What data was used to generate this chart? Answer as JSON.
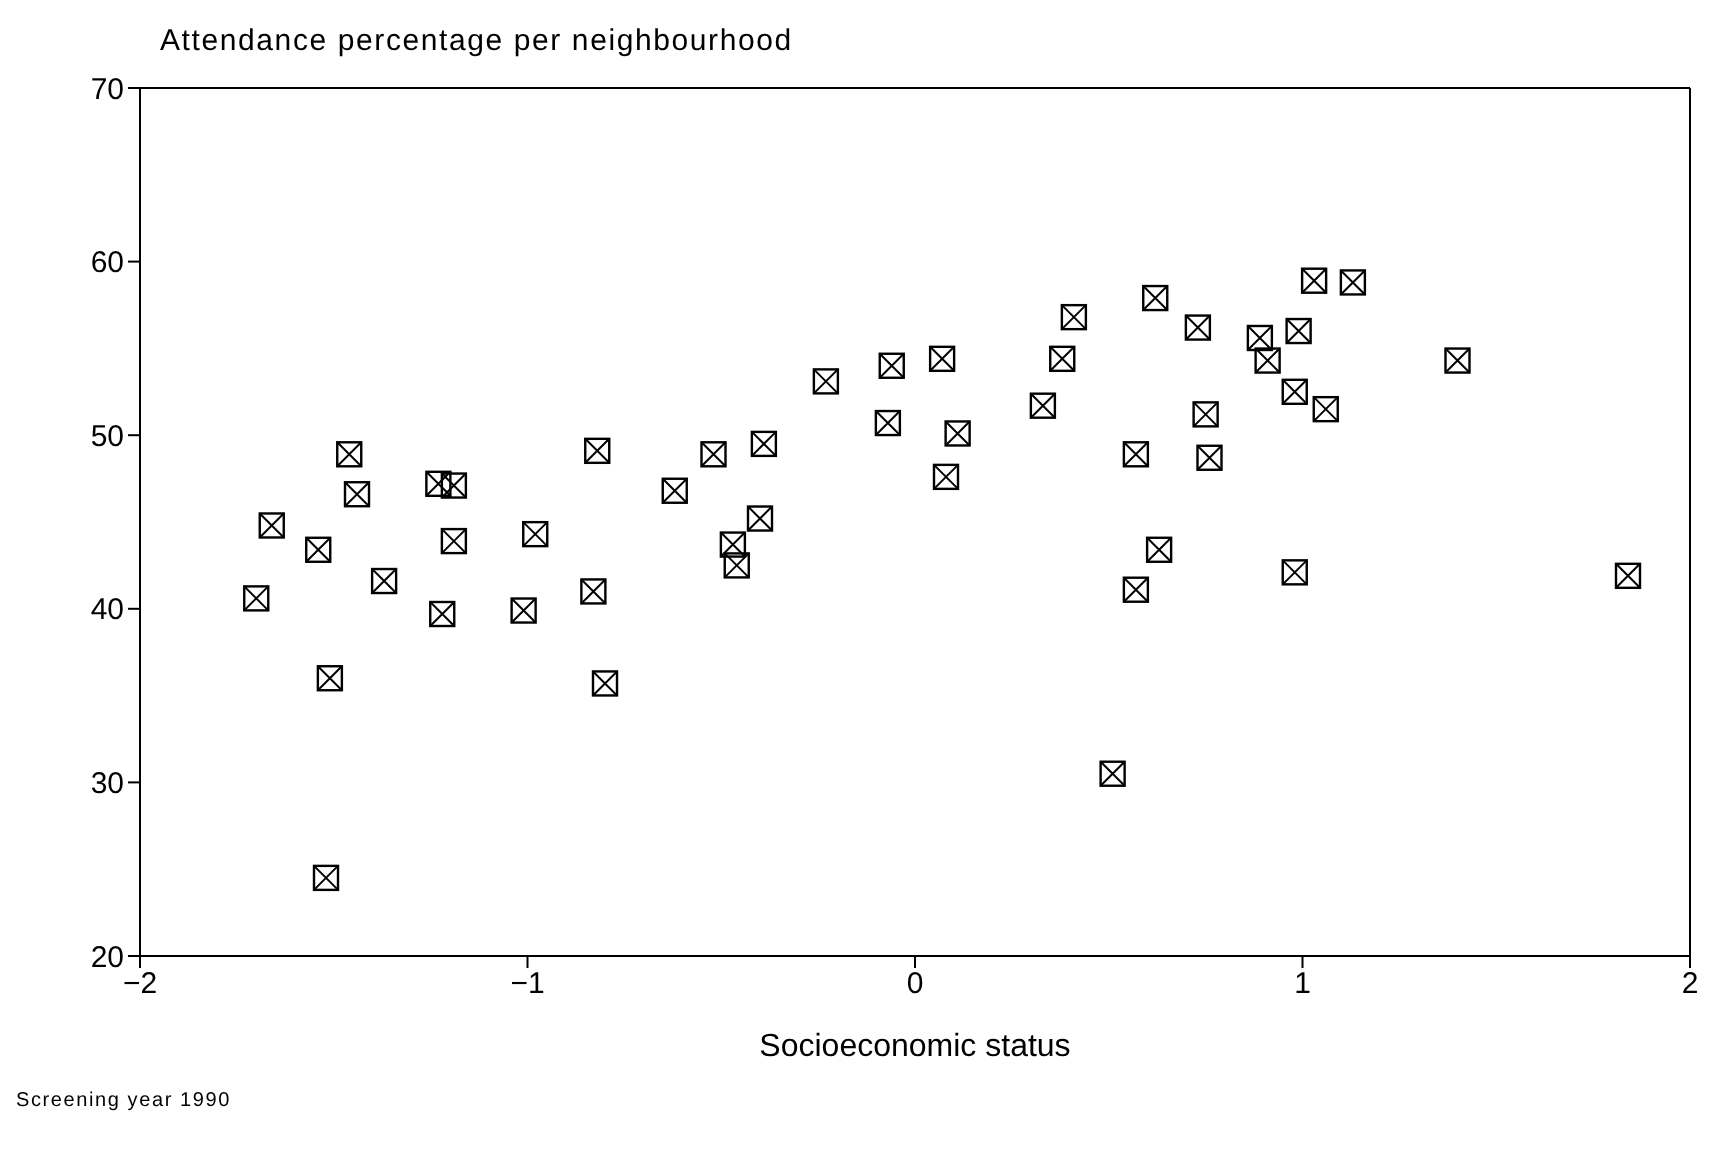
{
  "chart_data": {
    "type": "scatter",
    "title": "Attendance percentage per neighbourhood",
    "xlabel": "Socioeconomic status",
    "annotations": [
      "Screening year 1990"
    ],
    "x": [
      -1.7,
      -1.66,
      -1.54,
      -1.51,
      -1.52,
      -1.46,
      -1.44,
      -1.37,
      -1.23,
      -1.19,
      -1.19,
      -1.22,
      -1.01,
      -0.98,
      -0.82,
      -0.83,
      -0.8,
      -0.62,
      -0.52,
      -0.47,
      -0.46,
      -0.4,
      -0.39,
      -0.23,
      -0.07,
      -0.06,
      0.07,
      0.08,
      0.11,
      0.33,
      0.38,
      0.41,
      0.51,
      0.57,
      0.57,
      0.62,
      0.63,
      0.73,
      0.75,
      0.76,
      0.89,
      0.91,
      0.98,
      0.98,
      0.99,
      1.03,
      1.06,
      1.13,
      1.4,
      1.84
    ],
    "values": [
      40.6,
      44.8,
      43.4,
      36.0,
      24.5,
      48.9,
      46.6,
      41.6,
      47.2,
      47.1,
      43.9,
      39.7,
      39.9,
      44.3,
      49.1,
      41.0,
      35.7,
      46.8,
      48.9,
      43.7,
      42.5,
      45.2,
      49.5,
      53.1,
      50.7,
      54.0,
      54.4,
      47.6,
      50.1,
      51.7,
      54.4,
      56.8,
      30.5,
      48.9,
      41.1,
      57.9,
      43.4,
      56.2,
      51.2,
      48.7,
      55.6,
      54.3,
      52.5,
      42.1,
      56.0,
      58.9,
      51.5,
      58.8,
      54.3,
      41.9
    ],
    "color": "#000000",
    "marker": "square",
    "grid": false,
    "legend": false,
    "xlim": [
      -2,
      2
    ],
    "xticks": [
      -2,
      -1,
      0,
      1,
      2
    ],
    "ylim": [
      20,
      70
    ],
    "yticks": [
      20,
      30,
      40,
      50,
      60,
      70
    ]
  }
}
